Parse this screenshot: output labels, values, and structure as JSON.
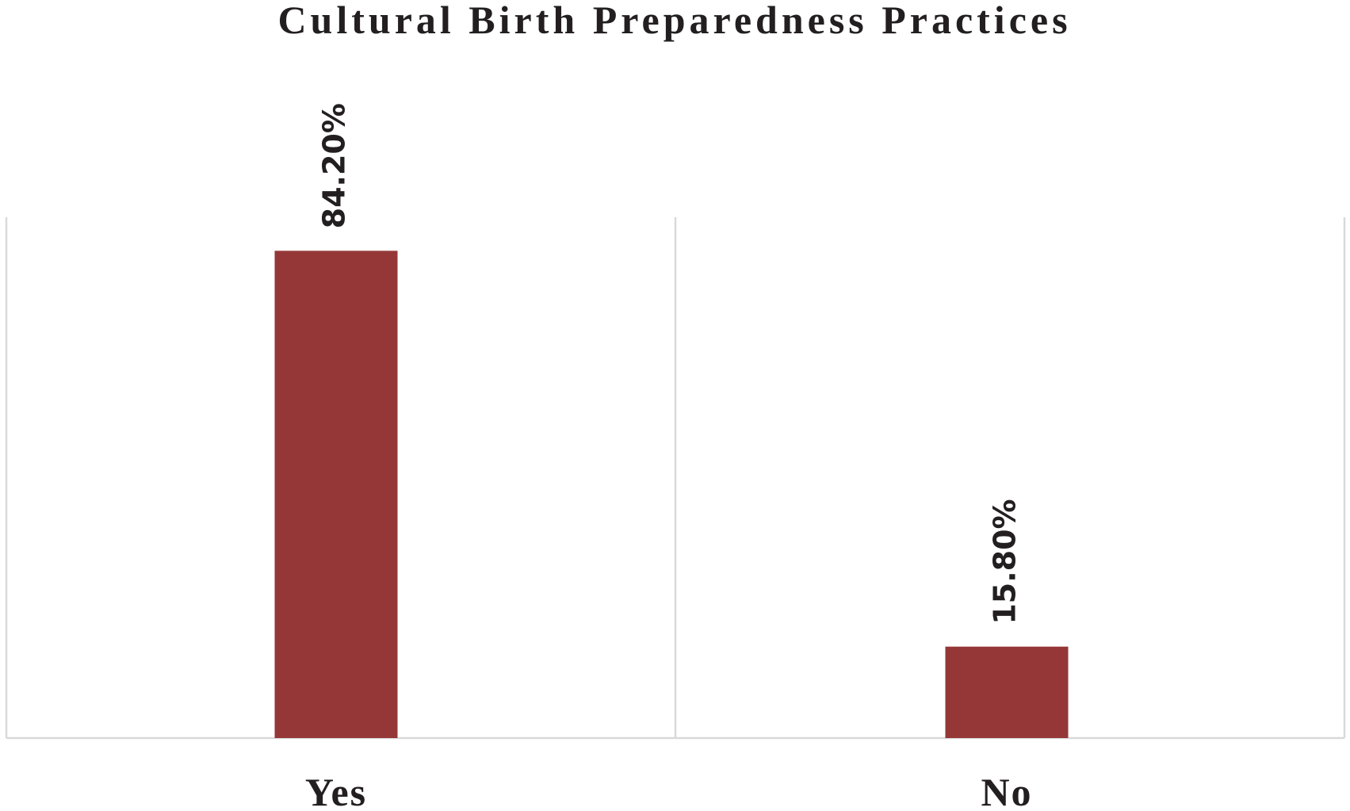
{
  "chart_data": {
    "type": "bar",
    "title": "Cultural Birth Preparedness Practices",
    "categories": [
      "Yes",
      "No"
    ],
    "values": [
      84.2,
      15.8
    ],
    "value_labels": [
      "84.20%",
      "15.80%"
    ],
    "color": "#963737",
    "ylim": [
      0,
      90
    ]
  }
}
